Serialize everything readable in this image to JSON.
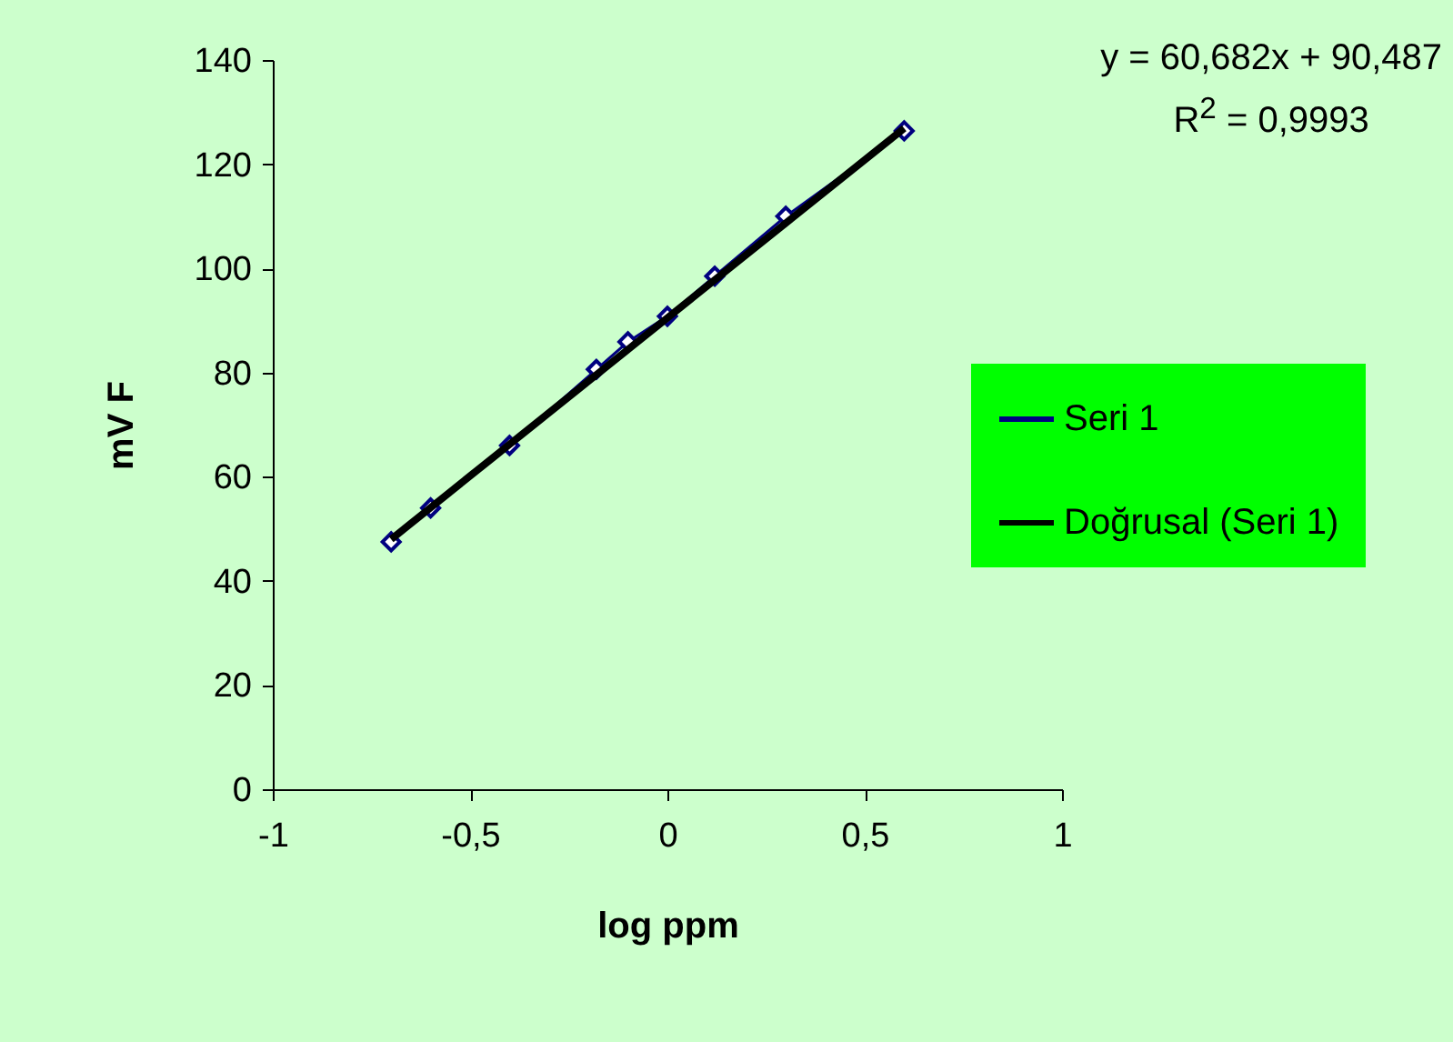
{
  "chart_data": {
    "type": "line",
    "xlabel": "log ppm",
    "ylabel": "mV F",
    "annotations": [
      "y = 60,682x + 90,487",
      "R$^{2}$ = 0,9993"
    ],
    "series": [
      {
        "name": "Seri 1",
        "marker": "diamond",
        "color": "#000080",
        "x": [
          -0.7,
          -0.6,
          -0.4,
          -0.18,
          -0.1,
          0.0,
          0.12,
          0.3,
          0.6
        ],
        "values": [
          47.5,
          54,
          66,
          80.6,
          85.9,
          90.8,
          98.5,
          110,
          126.4
        ]
      },
      {
        "name": "Doğrusal (Seri 1)",
        "marker": "none",
        "color": "#000000",
        "x": [
          -0.7,
          0.6
        ],
        "values": [
          48.0,
          126.9
        ]
      }
    ],
    "xlim": [
      -1,
      1
    ],
    "xticks": [
      -1,
      {
        "value": -0.5,
        "label": "-0,5"
      },
      0,
      {
        "value": 0.5,
        "label": "0,5"
      },
      1
    ],
    "ylim": [
      0,
      140
    ],
    "yticks": [
      0,
      20,
      40,
      60,
      80,
      100,
      120,
      140
    ],
    "grid": false,
    "legend": "right"
  }
}
